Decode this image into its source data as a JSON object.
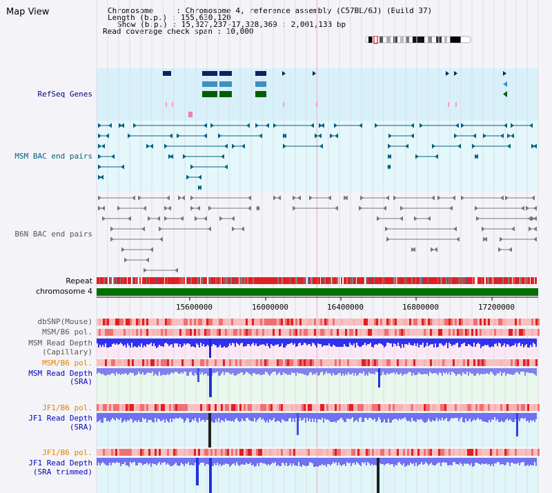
{
  "view_title": "Map View",
  "info": {
    "line1": "Chromosome     : Chromosome 4, reference assembly (C57BL/6J) (Build 37)",
    "line2": "Length (b.p.) : 155,630,120",
    "line3": "Show (b.p.) : 15,327,237-17,328,369 : 2,001,133 bp",
    "line4": "Read coverage check span : 10,000"
  },
  "tracks": {
    "refseq": "RefSeq Genes",
    "msm_bac": "MSM BAC end pairs",
    "b6n_bac": "B6N BAC end pairs",
    "repeat": "Repeat",
    "chromosome": "chromosome 4",
    "dbsnp": "dbSNP(Mouse)",
    "msm_b6_pol_1": "MSM/B6 pol.",
    "msm_depth_cap_1": "MSM Read Depth",
    "msm_depth_cap_2": "(Capillary)",
    "msm_b6_pol_2": "MSM/B6 pol.",
    "msm_depth_sra_1": "MSM Read Depth",
    "msm_depth_sra_2": "(SRA)",
    "jf1_b6_pol_1": "JF1/B6 pol.",
    "jf1_depth_sra_1": "JF1 Read Depth",
    "jf1_depth_sra_2": "(SRA)",
    "jf1_b6_pol_2": "JF1/B6 pol.",
    "jf1_depth_trim_1": "JF1 Read Depth",
    "jf1_depth_trim_2": "(SRA trimmed)"
  },
  "axis_ticks": [
    "15600000",
    "16000000",
    "16400000",
    "16800000",
    "17200000"
  ],
  "colors": {
    "refseq_label": "#000080",
    "msm_label": "#006080",
    "b6n_label": "#555555",
    "pol_label_orange": "#e08000",
    "depth_label_blue": "#0000c0",
    "chromosome_bar": "#007000"
  }
}
